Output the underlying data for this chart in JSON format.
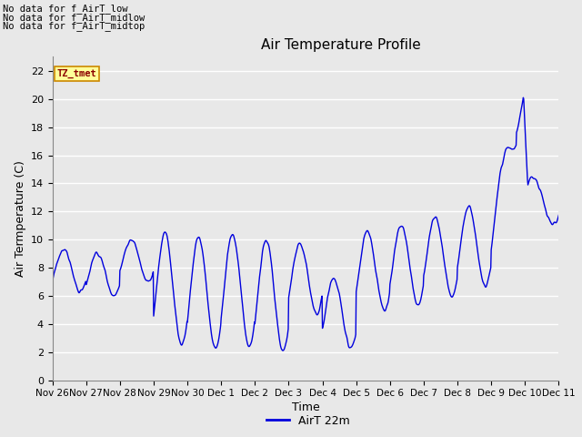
{
  "title": "Air Temperature Profile",
  "xlabel": "Time",
  "ylabel": "Air Termperature (C)",
  "ylim": [
    0,
    23
  ],
  "yticks": [
    0,
    2,
    4,
    6,
    8,
    10,
    12,
    14,
    16,
    18,
    20,
    22
  ],
  "line_color": "#0000dd",
  "line_width": 1.0,
  "bg_color": "#e8e8e8",
  "plot_bg_color": "#e8e8e8",
  "legend_label": "AirT 22m",
  "annotations": [
    "No data for f_AirT_low",
    "No data for f_AirT_midlow",
    "No data for f_AirT_midtop"
  ],
  "tz_label": "TZ_tmet",
  "x_tick_labels": [
    "Nov 26",
    "Nov 27",
    "Nov 28",
    "Nov 29",
    "Nov 30",
    "Dec 1",
    "Dec 2",
    "Dec 3",
    "Dec 4",
    "Dec 5",
    "Dec 6",
    "Dec 7",
    "Dec 8",
    "Dec 9",
    "Dec 10",
    "Dec 11"
  ],
  "x_tick_positions": [
    0,
    24,
    48,
    72,
    96,
    120,
    144,
    168,
    192,
    216,
    240,
    264,
    288,
    312,
    336,
    360
  ]
}
